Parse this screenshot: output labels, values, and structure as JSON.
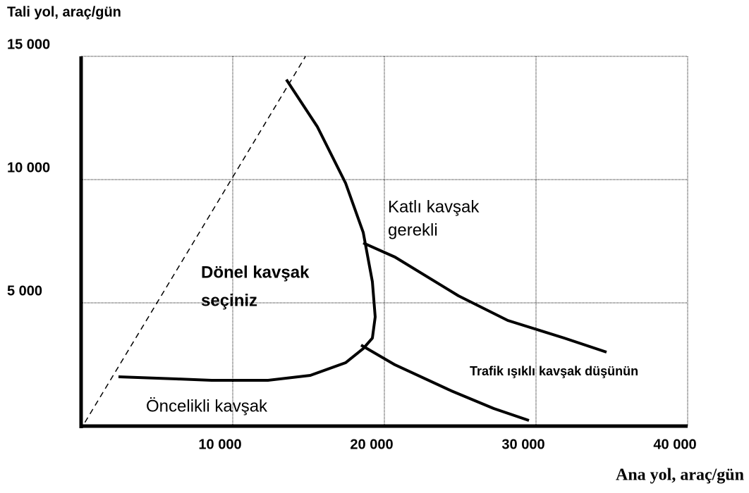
{
  "chart_data": {
    "type": "line",
    "ylabel": "Tali yol, araç/gün",
    "xlabel": "Ana yol, araç/gün",
    "xlim": [
      0,
      40000
    ],
    "ylim": [
      0,
      15000
    ],
    "xticks": [
      {
        "value": 10000,
        "label": "10 000"
      },
      {
        "value": 20000,
        "label": "20 000"
      },
      {
        "value": 30000,
        "label": "30 000"
      },
      {
        "value": 40000,
        "label": "40 000"
      }
    ],
    "yticks": [
      {
        "value": 5000,
        "label": "5 000"
      },
      {
        "value": 10000,
        "label": "10 000"
      },
      {
        "value": 15000,
        "label": "15 000"
      }
    ],
    "grid": true,
    "series": [
      {
        "color": "#000000",
        "dashed": true,
        "x": [
          250,
          14800
        ],
        "values": [
          150,
          15000
        ]
      },
      {
        "color": "#000000",
        "dashed": false,
        "x": [
          13535,
          15581,
          17442,
          18605,
          19209,
          19395,
          19209,
          18605,
          17442,
          15116,
          12326,
          8605,
          6279,
          2465
        ],
        "values": [
          14057,
          12143,
          9857,
          7857,
          5857,
          4429,
          3571,
          3143,
          2571,
          2057,
          1857,
          1857,
          1914,
          2000
        ]
      },
      {
        "color": "#000000",
        "dashed": false,
        "x": [
          18605,
          20698,
          24884,
          28140,
          31860,
          34651
        ],
        "values": [
          7429,
          6857,
          5286,
          4286,
          3571,
          3000
        ]
      },
      {
        "color": "#000000",
        "dashed": false,
        "x": [
          18465,
          20698,
          24419,
          27209,
          29535
        ],
        "values": [
          3286,
          2486,
          1429,
          714,
          229
        ]
      }
    ],
    "annotations": [
      "Katlı kavşak",
      "gerekli",
      "Dönel kavşak",
      "seçiniz",
      "Trafik ışıklı kavşak düşünün",
      "Öncelikli kavşak"
    ]
  }
}
